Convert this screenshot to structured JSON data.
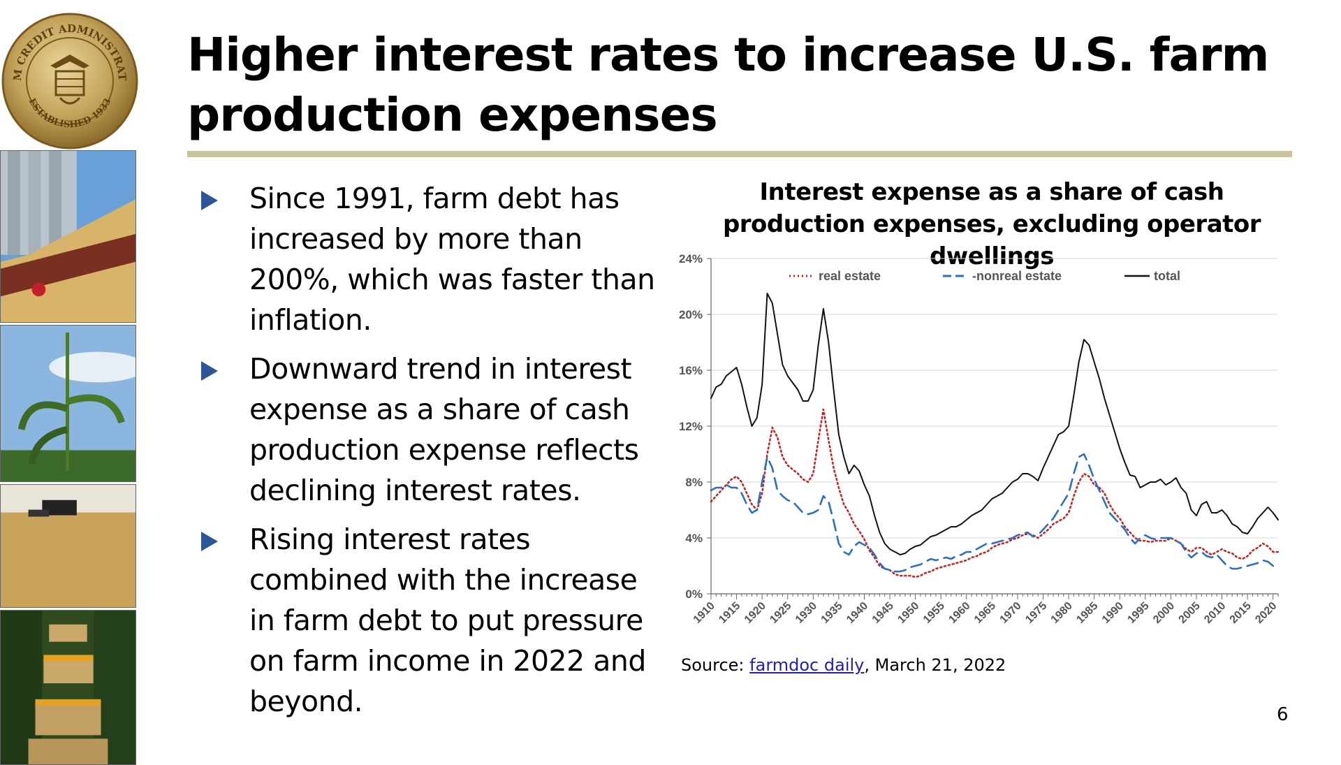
{
  "slide": {
    "title": "Higher interest rates to increase U.S. farm production expenses",
    "page_number": "6"
  },
  "seal": {
    "arc_text": "FARM CREDIT ADMINISTRATION",
    "established": "ESTABLISHED 1933"
  },
  "bullets": [
    {
      "text": "Since 1991, farm debt has increased by more than 200%, which was faster than inflation."
    },
    {
      "text": "Downward trend in interest expense as a share of cash production expense reflects declining interest rates."
    },
    {
      "text": "Rising interest rates combined with the increase in farm debt to put pressure on farm income in 2022 and beyond."
    }
  ],
  "source": {
    "prefix": "Source: ",
    "link_text": "farmdoc daily",
    "suffix": ", March 21, 2022"
  },
  "colors": {
    "accent_rule": "#c8c39a",
    "bullet_arrow": "#2e5597",
    "real_estate": "#cc2222",
    "nonreal_estate": "#2a6fc2",
    "total": "#111111",
    "link": "#1f1fb4"
  },
  "chart_data": {
    "type": "line",
    "title": "Interest expense as a share of cash production expenses, excluding operator dwellings",
    "xlabel": "",
    "ylabel": "",
    "ylim": [
      0,
      24
    ],
    "xlim": [
      1910,
      2021
    ],
    "y_ticks": [
      "0%",
      "4%",
      "8%",
      "12%",
      "16%",
      "20%",
      "24%"
    ],
    "x_ticks": [
      "1910",
      "1915",
      "1920",
      "1925",
      "1930",
      "1935",
      "1940",
      "1945",
      "1950",
      "1955",
      "1960",
      "1965",
      "1970",
      "1975",
      "1980",
      "1985",
      "1990",
      "1995",
      "2000",
      "2005",
      "2010",
      "2015",
      "2020"
    ],
    "legend_position": "top",
    "grid": "horizontal",
    "x": [
      1910,
      1911,
      1912,
      1913,
      1914,
      1915,
      1916,
      1917,
      1918,
      1919,
      1920,
      1921,
      1922,
      1923,
      1924,
      1925,
      1926,
      1927,
      1928,
      1929,
      1930,
      1931,
      1932,
      1933,
      1934,
      1935,
      1936,
      1937,
      1938,
      1939,
      1940,
      1941,
      1942,
      1943,
      1944,
      1945,
      1946,
      1947,
      1948,
      1949,
      1950,
      1951,
      1952,
      1953,
      1954,
      1955,
      1956,
      1957,
      1958,
      1959,
      1960,
      1961,
      1962,
      1963,
      1964,
      1965,
      1966,
      1967,
      1968,
      1969,
      1970,
      1971,
      1972,
      1973,
      1974,
      1975,
      1976,
      1977,
      1978,
      1979,
      1980,
      1981,
      1982,
      1983,
      1984,
      1985,
      1986,
      1987,
      1988,
      1989,
      1990,
      1991,
      1992,
      1993,
      1994,
      1995,
      1996,
      1997,
      1998,
      1999,
      2000,
      2001,
      2002,
      2003,
      2004,
      2005,
      2006,
      2007,
      2008,
      2009,
      2010,
      2011,
      2012,
      2013,
      2014,
      2015,
      2016,
      2017,
      2018,
      2019,
      2020,
      2021
    ],
    "series": [
      {
        "name": "real estate",
        "style": "dotted",
        "values": [
          6.6,
          7.0,
          7.4,
          7.8,
          8.2,
          8.4,
          8.0,
          7.2,
          6.4,
          6.0,
          7.2,
          10.0,
          11.9,
          11.2,
          9.8,
          9.2,
          8.9,
          8.6,
          8.2,
          8.0,
          8.6,
          11.0,
          13.2,
          11.0,
          9.0,
          7.6,
          6.4,
          5.8,
          5.0,
          4.5,
          3.9,
          3.1,
          2.6,
          2.0,
          1.8,
          1.7,
          1.4,
          1.3,
          1.3,
          1.3,
          1.2,
          1.3,
          1.5,
          1.6,
          1.8,
          1.9,
          2.0,
          2.1,
          2.2,
          2.3,
          2.4,
          2.6,
          2.7,
          2.9,
          3.0,
          3.3,
          3.5,
          3.6,
          3.7,
          3.9,
          4.0,
          4.2,
          4.3,
          4.2,
          4.0,
          4.3,
          4.6,
          5.0,
          5.2,
          5.4,
          5.8,
          7.0,
          8.0,
          8.6,
          8.4,
          7.8,
          7.6,
          7.2,
          6.4,
          5.8,
          5.4,
          4.8,
          4.4,
          4.0,
          3.8,
          3.8,
          3.7,
          3.8,
          3.8,
          3.8,
          4.0,
          3.8,
          3.6,
          3.2,
          3.0,
          3.3,
          3.3,
          3.0,
          2.8,
          3.0,
          3.2,
          3.0,
          2.9,
          2.6,
          2.5,
          2.7,
          3.1,
          3.3,
          3.6,
          3.4,
          3.0,
          3.0
        ]
      },
      {
        "name": "nonreal estate",
        "style": "dashed",
        "values": [
          7.4,
          7.6,
          7.6,
          7.8,
          7.6,
          7.6,
          7.2,
          6.4,
          5.8,
          6.0,
          8.0,
          9.8,
          9.0,
          7.4,
          7.0,
          6.7,
          6.6,
          6.2,
          5.8,
          5.7,
          5.8,
          6.0,
          7.0,
          6.6,
          5.2,
          3.6,
          3.0,
          2.8,
          3.4,
          3.7,
          3.5,
          3.3,
          2.8,
          2.2,
          1.8,
          1.7,
          1.6,
          1.6,
          1.7,
          1.9,
          2.0,
          2.1,
          2.3,
          2.5,
          2.4,
          2.5,
          2.6,
          2.5,
          2.7,
          2.8,
          3.0,
          3.0,
          3.2,
          3.4,
          3.6,
          3.6,
          3.7,
          3.8,
          3.9,
          4.0,
          4.2,
          4.3,
          4.4,
          4.1,
          4.2,
          4.6,
          5.0,
          5.4,
          6.0,
          6.6,
          7.2,
          8.6,
          9.8,
          10.0,
          9.2,
          8.2,
          7.4,
          6.6,
          5.8,
          5.4,
          5.0,
          4.6,
          4.0,
          3.6,
          4.0,
          4.2,
          4.0,
          3.9,
          4.0,
          4.0,
          4.0,
          3.8,
          3.6,
          3.0,
          2.6,
          2.9,
          3.0,
          2.7,
          2.6,
          2.8,
          2.4,
          2.0,
          1.8,
          1.8,
          1.9,
          2.0,
          2.1,
          2.2,
          2.4,
          2.3,
          2.0,
          2.0
        ]
      },
      {
        "name": "total",
        "style": "solid",
        "values": [
          14.0,
          14.8,
          15.0,
          15.6,
          15.9,
          16.2,
          15.0,
          13.4,
          12.0,
          12.6,
          15.0,
          21.5,
          20.8,
          18.6,
          16.4,
          15.6,
          15.1,
          14.6,
          13.8,
          13.8,
          14.6,
          17.8,
          20.4,
          18.0,
          14.6,
          11.4,
          9.8,
          8.6,
          9.2,
          8.8,
          7.8,
          7.0,
          5.6,
          4.4,
          3.6,
          3.2,
          3.0,
          2.8,
          2.9,
          3.2,
          3.4,
          3.5,
          3.8,
          4.1,
          4.2,
          4.4,
          4.6,
          4.8,
          4.8,
          5.0,
          5.3,
          5.6,
          5.8,
          6.0,
          6.4,
          6.8,
          7.0,
          7.2,
          7.6,
          8.0,
          8.2,
          8.6,
          8.6,
          8.4,
          8.1,
          9.0,
          9.8,
          10.6,
          11.4,
          11.6,
          12.0,
          14.2,
          16.6,
          18.2,
          17.8,
          16.6,
          15.4,
          14.0,
          12.8,
          11.6,
          10.4,
          9.4,
          8.5,
          8.4,
          7.6,
          7.8,
          8.0,
          8.0,
          8.2,
          7.8,
          8.0,
          8.3,
          7.6,
          7.2,
          6.0,
          5.6,
          6.4,
          6.6,
          5.8,
          5.8,
          6.0,
          5.6,
          5.0,
          4.8,
          4.4,
          4.3,
          4.8,
          5.4,
          5.8,
          6.2,
          5.8,
          5.3
        ]
      }
    ]
  }
}
